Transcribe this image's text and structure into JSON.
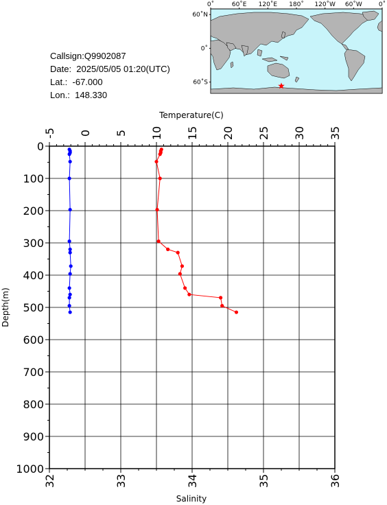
{
  "station": {
    "callsign": "Callsign:Q9902087",
    "date": "Date:  2025/05/05 01:20(UTC)",
    "lat": "Lat.:  -67.000",
    "lon": "Lon.:  148.330"
  },
  "map": {
    "lon_labels": [
      "0˚",
      "60˚E",
      "120˚E",
      "180˚",
      "120˚W",
      "60˚W",
      "0˚"
    ],
    "lat_labels": [
      "60˚N",
      "0˚",
      "60˚S"
    ],
    "ocean_color": "#c8f4fa",
    "land_color": "#b4b4b4",
    "marker": {
      "lon": 148.33,
      "lat": -67.0,
      "color": "#ff0000",
      "icon": "star-icon"
    }
  },
  "chart_data": {
    "type": "line",
    "depth_axis": {
      "label": "Depth(m)",
      "range": [
        0,
        1000
      ],
      "ticks": [
        "0",
        "100",
        "200",
        "300",
        "400",
        "500",
        "600",
        "700",
        "800",
        "900",
        "1000"
      ],
      "inverted": true
    },
    "temperature_axis": {
      "label": "Temperature(C)",
      "range": [
        -5,
        35
      ],
      "ticks": [
        "-5",
        "0",
        "5",
        "10",
        "15",
        "20",
        "25",
        "30",
        "35"
      ],
      "position": "top"
    },
    "salinity_axis": {
      "label": "Salinity",
      "range": [
        32,
        36
      ],
      "ticks": [
        "32",
        "33",
        "34",
        "35",
        "36"
      ],
      "position": "bottom"
    },
    "grid": true,
    "series": [
      {
        "quantity": "temperature",
        "color": "#ff0000",
        "points": [
          [
            10.7,
            10
          ],
          [
            10.6,
            15
          ],
          [
            10.6,
            20
          ],
          [
            10.5,
            25
          ],
          [
            10.0,
            48
          ],
          [
            10.5,
            100
          ],
          [
            10.1,
            197
          ],
          [
            10.3,
            295
          ],
          [
            11.6,
            320
          ],
          [
            13.0,
            330
          ],
          [
            13.6,
            372
          ],
          [
            13.3,
            396
          ],
          [
            14.0,
            440
          ],
          [
            14.6,
            460
          ],
          [
            19.0,
            470
          ],
          [
            19.2,
            495
          ],
          [
            21.2,
            515
          ]
        ]
      },
      {
        "quantity": "salinity",
        "color": "#0000ff",
        "points": [
          [
            32.28,
            10
          ],
          [
            32.29,
            15
          ],
          [
            32.29,
            20
          ],
          [
            32.28,
            25
          ],
          [
            32.29,
            48
          ],
          [
            32.28,
            100
          ],
          [
            32.29,
            197
          ],
          [
            32.28,
            295
          ],
          [
            32.29,
            320
          ],
          [
            32.29,
            330
          ],
          [
            32.3,
            372
          ],
          [
            32.29,
            396
          ],
          [
            32.28,
            440
          ],
          [
            32.29,
            460
          ],
          [
            32.28,
            470
          ],
          [
            32.28,
            495
          ],
          [
            32.29,
            515
          ]
        ]
      }
    ]
  }
}
